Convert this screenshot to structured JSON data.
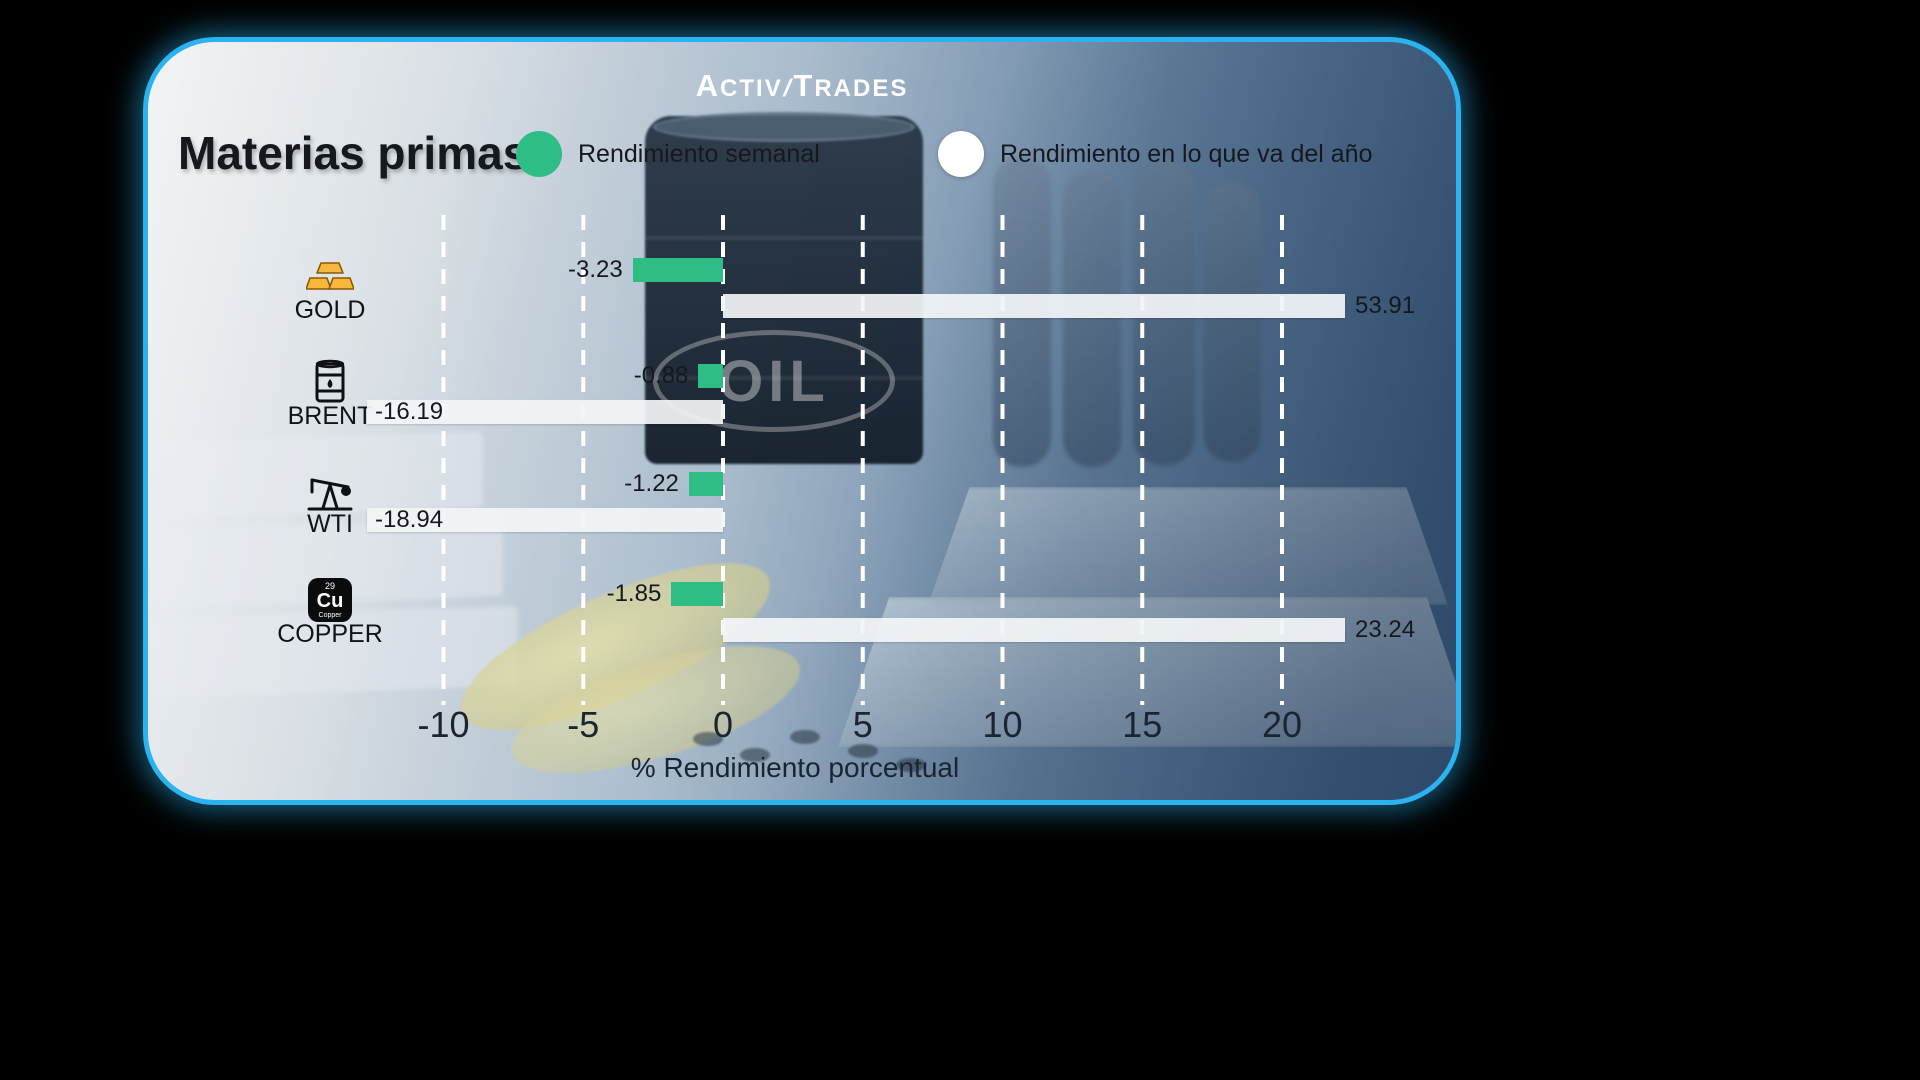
{
  "theme": {
    "card_border": "#2AB3F0",
    "bar_green": "#2EBD85",
    "bar_white": "#F3F6F8",
    "background_black": "#000000"
  },
  "logo": {
    "part1": "Activ",
    "separator": "/",
    "part2": "Trades"
  },
  "header": {
    "title": "Materias primas"
  },
  "legend": {
    "weekly": {
      "label": "Rendimiento semanal",
      "color": "#2EBD85"
    },
    "ytd": {
      "label": "Rendimiento en lo que va del año",
      "color": "#FFFFFF"
    }
  },
  "background_art": {
    "oil_text": "OIL"
  },
  "icon_text": {
    "copper": {
      "atomic_number": "29",
      "symbol": "Cu",
      "element_name": "Copper"
    }
  },
  "chart_data": {
    "type": "bar",
    "orientation": "horizontal",
    "title": "Materias primas",
    "xlabel": "% Rendimiento porcentual",
    "x_ticks": [
      -10,
      -5,
      0,
      5,
      10,
      15,
      20
    ],
    "xlim": [
      -12.7,
      22.3
    ],
    "grid": "dashed-vertical-white",
    "legend_position": "top",
    "categories": [
      "GOLD",
      "BRENT",
      "WTI",
      "COPPER"
    ],
    "icons": [
      "gold-bars-icon",
      "oil-barrel-icon",
      "oil-pump-icon",
      "copper-element-icon"
    ],
    "series": [
      {
        "name": "Rendimiento semanal",
        "color": "#2EBD85",
        "values": [
          -3.23,
          -0.88,
          -1.22,
          -1.85
        ]
      },
      {
        "name": "Rendimiento en lo que va del año",
        "color": "#F3F6F8",
        "values": [
          53.91,
          -16.19,
          -18.94,
          23.24
        ]
      }
    ]
  }
}
